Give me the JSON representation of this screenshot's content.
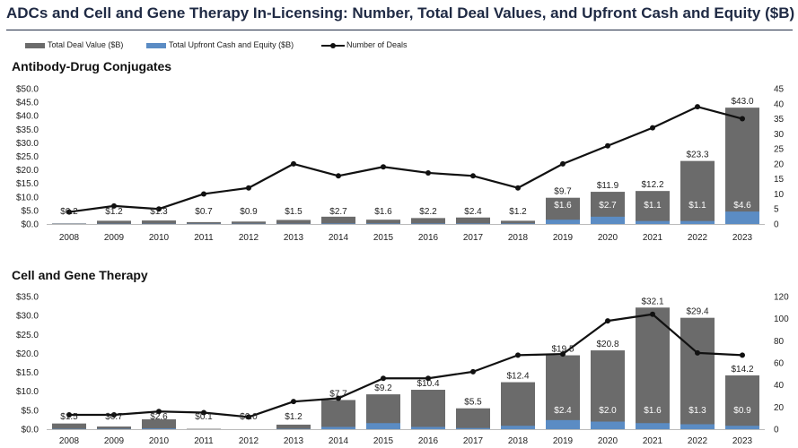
{
  "header": {
    "title": "ADCs and Cell and Gene Therapy In-Licensing: Number, Total Deal Values, and Upfront Cash and Equity ($B)"
  },
  "legend": {
    "total_label": "Total Deal Value ($B)",
    "upfront_label": "Total Upfront Cash and Equity ($B)",
    "deals_label": "Number of Deals"
  },
  "colors": {
    "total": "#6b6b6b",
    "upfront": "#5b8cc4",
    "deals": "#111111"
  },
  "chart_data": [
    {
      "type": "bar",
      "title": "Antibody-Drug Conjugates",
      "categories": [
        "2008",
        "2009",
        "2010",
        "2011",
        "2012",
        "2013",
        "2014",
        "2015",
        "2016",
        "2017",
        "2018",
        "2019",
        "2020",
        "2021",
        "2022",
        "2023"
      ],
      "series": [
        {
          "name": "Total Deal Value ($B)",
          "axis": "left",
          "values": [
            0.2,
            1.2,
            1.3,
            0.7,
            0.9,
            1.5,
            2.7,
            1.6,
            2.2,
            2.4,
            1.2,
            9.7,
            11.9,
            12.2,
            23.3,
            43.0
          ],
          "labels": [
            "$0.2",
            "$1.2",
            "$1.3",
            "$0.7",
            "$0.9",
            "$1.5",
            "$2.7",
            "$1.6",
            "$2.2",
            "$2.4",
            "$1.2",
            "$9.7",
            "$11.9",
            "$12.2",
            "$23.3",
            "$43.0"
          ]
        },
        {
          "name": "Total Upfront Cash and Equity ($B)",
          "axis": "left",
          "values": [
            0.05,
            0.1,
            0.1,
            0.1,
            0.1,
            0.1,
            0.2,
            0.2,
            0.2,
            0.2,
            0.2,
            1.6,
            2.7,
            1.1,
            1.1,
            4.6
          ],
          "labels": [
            "",
            "",
            "",
            "",
            "",
            "",
            "",
            "",
            "",
            "",
            "",
            "$1.6",
            "$2.7",
            "$1.1",
            "$1.1",
            "$4.6"
          ]
        },
        {
          "name": "Number of Deals",
          "axis": "right",
          "type": "line",
          "values": [
            4,
            6,
            5,
            10,
            12,
            20,
            16,
            19,
            17,
            16,
            12,
            20,
            26,
            32,
            39,
            35
          ]
        }
      ],
      "left_axis": {
        "min": 0,
        "max": 50,
        "ticks": [
          "$0.0",
          "$5.0",
          "$10.0",
          "$15.0",
          "$20.0",
          "$25.0",
          "$30.0",
          "$35.0",
          "$40.0",
          "$45.0",
          "$50.0"
        ]
      },
      "right_axis": {
        "min": 0,
        "max": 45,
        "ticks": [
          "0",
          "5",
          "10",
          "15",
          "20",
          "25",
          "30",
          "35",
          "40",
          "45"
        ]
      }
    },
    {
      "type": "bar",
      "title": "Cell and Gene Therapy",
      "categories": [
        "2008",
        "2009",
        "2010",
        "2011",
        "2012",
        "2013",
        "2014",
        "2015",
        "2016",
        "2017",
        "2018",
        "2019",
        "2020",
        "2021",
        "2022",
        "2023"
      ],
      "series": [
        {
          "name": "Total Deal Value ($B)",
          "axis": "left",
          "values": [
            1.5,
            0.7,
            2.6,
            0.1,
            0.0,
            1.2,
            7.7,
            9.2,
            10.4,
            5.5,
            12.4,
            19.5,
            20.8,
            32.1,
            29.4,
            14.2
          ],
          "labels": [
            "$1.5",
            "$0.7",
            "$2.6",
            "$0.1",
            "$0.0",
            "$1.2",
            "$7.7",
            "$9.2",
            "$10.4",
            "$5.5",
            "$12.4",
            "$19.5",
            "$20.8",
            "$32.1",
            "$29.4",
            "$14.2"
          ]
        },
        {
          "name": "Total Upfront Cash and Equity ($B)",
          "axis": "left",
          "values": [
            0.1,
            0.1,
            0.2,
            0.0,
            0.0,
            0.1,
            0.6,
            1.6,
            0.6,
            0.3,
            0.9,
            2.4,
            2.0,
            1.6,
            1.3,
            0.9
          ],
          "labels": [
            "",
            "",
            "",
            "",
            "",
            "",
            "",
            "",
            "",
            "",
            "",
            "$2.4",
            "$2.0",
            "$1.6",
            "$1.3",
            "$0.9"
          ]
        },
        {
          "name": "Number of Deals",
          "axis": "right",
          "type": "line",
          "values": [
            13,
            13,
            16,
            15,
            11,
            25,
            28,
            46,
            46,
            52,
            67,
            68,
            98,
            104,
            69,
            67
          ]
        }
      ],
      "left_axis": {
        "min": 0,
        "max": 35,
        "ticks": [
          "$0.0",
          "$5.0",
          "$10.0",
          "$15.0",
          "$20.0",
          "$25.0",
          "$30.0",
          "$35.0"
        ]
      },
      "right_axis": {
        "min": 0,
        "max": 120,
        "ticks": [
          "0",
          "20",
          "40",
          "60",
          "80",
          "100",
          "120"
        ]
      }
    }
  ]
}
